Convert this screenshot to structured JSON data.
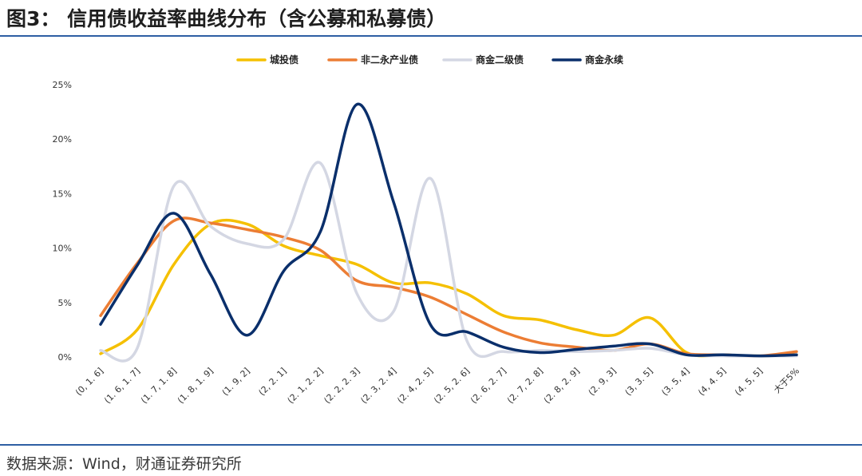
{
  "header": {
    "title": "图3：  信用债收益率曲线分布（含公募和私募债）"
  },
  "footer": {
    "source": "数据来源：Wind，财通证券研究所"
  },
  "chart_data": {
    "type": "line",
    "title": "",
    "xlabel": "",
    "ylabel": "",
    "ylim": [
      0,
      25
    ],
    "yticks": [
      "0%",
      "5%",
      "10%",
      "15%",
      "20%",
      "25%"
    ],
    "grid": false,
    "legend_position": "top",
    "categories": [
      "(0, 1. 6]",
      "(1. 6, 1. 7]",
      "(1. 7, 1. 8]",
      "(1. 8, 1. 9]",
      "(1. 9, 2]",
      "(2, 2. 1]",
      "(2. 1, 2. 2]",
      "(2. 2, 2. 3]",
      "(2. 3, 2. 4]",
      "(2. 4, 2. 5]",
      "(2. 5, 2. 6]",
      "(2. 6, 2. 7]",
      "(2. 7, 2. 8]",
      "(2. 8, 2. 9]",
      "(2. 9, 3]",
      "(3, 3. 5]",
      "(3. 5, 4]",
      "(4, 4. 5]",
      "(4. 5, 5]",
      "大于5%"
    ],
    "series": [
      {
        "name": "城投债",
        "color": "#f5c000",
        "values": [
          0.3,
          2.5,
          8.5,
          12.2,
          12.2,
          10.2,
          9.3,
          8.5,
          6.8,
          6.8,
          5.8,
          3.8,
          3.4,
          2.5,
          2.0,
          3.6,
          0.4,
          0.2,
          0.1,
          0.2
        ]
      },
      {
        "name": "非二永产业债",
        "color": "#ec7d34",
        "values": [
          3.8,
          8.6,
          12.5,
          12.3,
          11.7,
          11.0,
          9.8,
          7.0,
          6.4,
          5.5,
          3.9,
          2.3,
          1.3,
          0.9,
          0.6,
          1.2,
          0.3,
          0.2,
          0.1,
          0.5
        ]
      },
      {
        "name": "商金二级债",
        "color": "#d4d7e3",
        "values": [
          0.6,
          0.8,
          15.7,
          12.0,
          10.4,
          10.8,
          17.8,
          5.8,
          4.2,
          16.4,
          1.5,
          0.5,
          0.6,
          0.5,
          0.6,
          0.8,
          0.2,
          0.1,
          0.1,
          0.1
        ]
      },
      {
        "name": "商金永续",
        "color": "#0a2f6b",
        "values": [
          3.0,
          8.4,
          13.2,
          7.6,
          2.0,
          7.9,
          11.5,
          23.2,
          14.2,
          3.0,
          2.3,
          0.9,
          0.4,
          0.7,
          1.0,
          1.2,
          0.2,
          0.2,
          0.1,
          0.2
        ]
      }
    ]
  }
}
